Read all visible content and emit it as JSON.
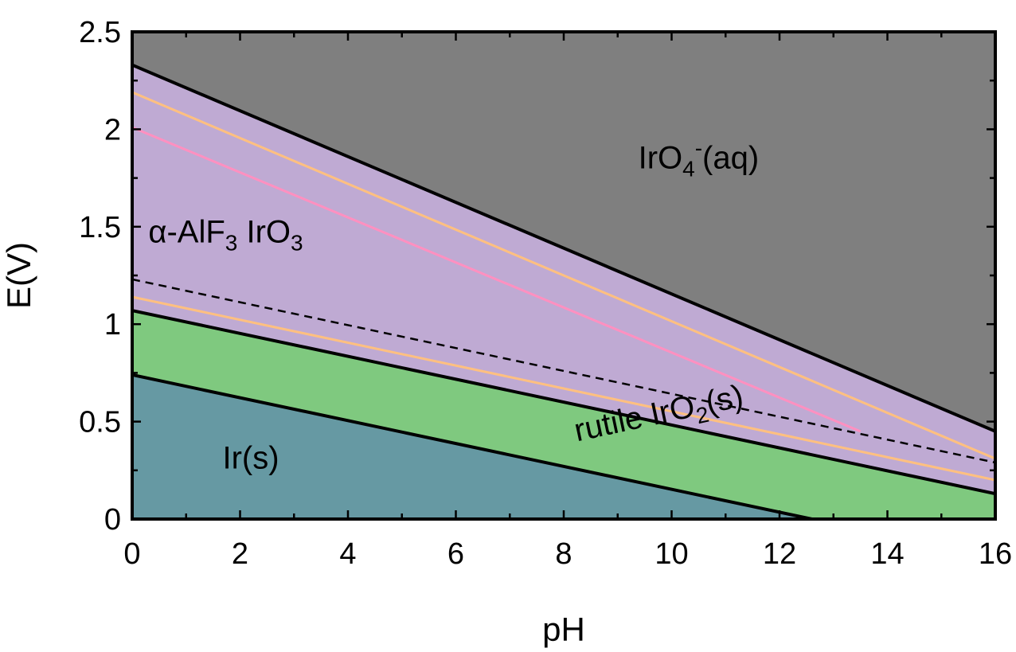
{
  "chart_data": {
    "type": "area",
    "xlabel": "pH",
    "ylabel": "E(V)",
    "xlim": [
      0,
      16
    ],
    "ylim": [
      0,
      2.5
    ],
    "x_ticks": [
      0,
      2,
      4,
      6,
      8,
      10,
      12,
      14,
      16
    ],
    "x_tick_labels": [
      "0",
      "2",
      "4",
      "6",
      "8",
      "10",
      "12",
      "14",
      "16"
    ],
    "y_ticks": [
      0,
      0.5,
      1,
      1.5,
      2,
      2.5
    ],
    "y_tick_labels": [
      "0",
      "0.5",
      "1",
      "1.5",
      "2",
      "2.5"
    ],
    "grid": false,
    "regions": [
      {
        "name": "IrO4-(aq)",
        "color": "#7f7f7f",
        "lower_boundary": "IrO3/IrO4- boundary"
      },
      {
        "name": "α-AlF3 IrO3",
        "color": "#bfaad3",
        "lower_boundary": "IrO2/IrO3 boundary"
      },
      {
        "name": "rutile IrO2(s)",
        "color": "#7fc97f",
        "lower_boundary": "Ir/IrO2 boundary"
      },
      {
        "name": "Ir(s)",
        "color": "#6699a3"
      }
    ],
    "series": [
      {
        "style": "solid",
        "color": "#000000",
        "x": [
          0,
          16
        ],
        "y": [
          2.33,
          0.45
        ]
      },
      {
        "style": "solid",
        "color": "#000000",
        "x": [
          0,
          16
        ],
        "y": [
          1.07,
          0.13
        ]
      },
      {
        "style": "solid",
        "color": "#000000",
        "x": [
          0,
          12.6
        ],
        "y": [
          0.74,
          0.0
        ]
      },
      {
        "style": "dashed",
        "color": "#000000",
        "x": [
          0,
          16
        ],
        "y": [
          1.23,
          0.29
        ]
      },
      {
        "style": "solid",
        "color": "#ffc080",
        "x": [
          0,
          16
        ],
        "y": [
          2.19,
          0.31
        ]
      },
      {
        "style": "solid",
        "color": "#ffc080",
        "x": [
          0,
          16
        ],
        "y": [
          1.14,
          0.2
        ]
      },
      {
        "style": "solid",
        "color": "#ff90c0",
        "x": [
          0,
          13.5
        ],
        "y": [
          2.01,
          0.45
        ]
      }
    ],
    "annotations": {
      "iro4": {
        "main": "IrO",
        "sub": "4",
        "sup": "-",
        "tail": "(aq)",
        "x": 10.5,
        "y": 1.8
      },
      "iro3": {
        "prefix": "α-AlF",
        "sub1": "3",
        "mid": " IrO",
        "sub2": "3",
        "x": 0.3,
        "y": 1.42
      },
      "iro2": {
        "prefix": "rutile IrO",
        "sub": "2",
        "tail": "(s)",
        "x": 9.8,
        "y": 0.49,
        "angle_deg": -12
      },
      "ir": {
        "text": "Ir(s)",
        "x": 2.2,
        "y": 0.26
      }
    }
  }
}
